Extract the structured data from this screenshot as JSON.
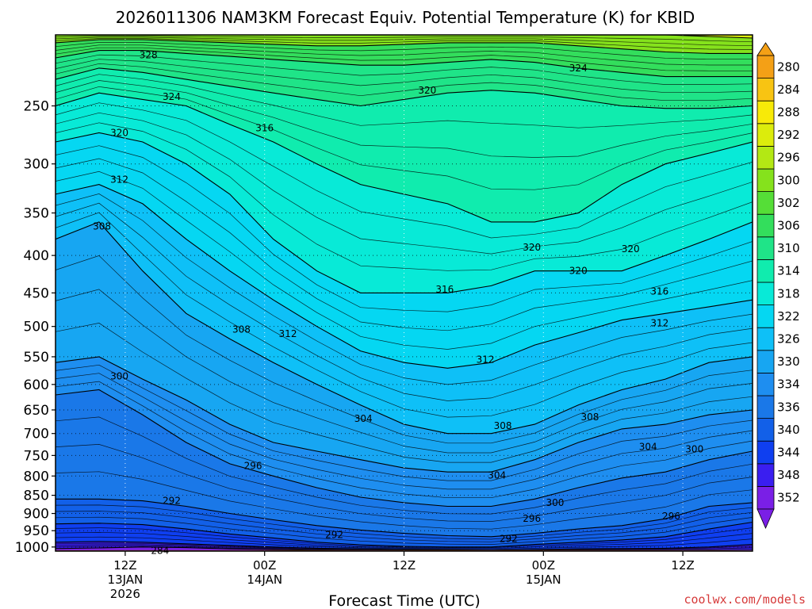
{
  "chart_data": {
    "type": "heatmap",
    "title": "2026011306 NAM3KM Forecast Equiv. Potential Temperature (K) for KBID",
    "xlabel": "Forecast Time (UTC)",
    "ylabel": "",
    "y_ticks": [
      250,
      300,
      350,
      400,
      450,
      500,
      550,
      600,
      650,
      700,
      750,
      800,
      850,
      900,
      950,
      1000
    ],
    "y_range": [
      1013,
      200
    ],
    "x_ticks": [
      {
        "hour": 12,
        "lines": [
          "12Z",
          "13JAN",
          "2026"
        ]
      },
      {
        "hour": 24,
        "lines": [
          "00Z",
          "14JAN"
        ]
      },
      {
        "hour": 36,
        "lines": [
          "12Z"
        ]
      },
      {
        "hour": 48,
        "lines": [
          "00Z",
          "15JAN"
        ]
      },
      {
        "hour": 60,
        "lines": [
          "12Z"
        ]
      }
    ],
    "x_range": [
      6,
      66
    ],
    "colorbar": {
      "levels": [
        280,
        284,
        288,
        292,
        296,
        300,
        302,
        306,
        310,
        314,
        318,
        322,
        326,
        330,
        334,
        336,
        340,
        344,
        348,
        352
      ],
      "colors": [
        "#7a1fe6",
        "#3a1ef0",
        "#0f3ff0",
        "#1260e8",
        "#1a78e8",
        "#1e8ef0",
        "#17a6f2",
        "#0ec0f7",
        "#05d7f2",
        "#08ead7",
        "#10ecae",
        "#1fe488",
        "#33de5c",
        "#55de37",
        "#85e21c",
        "#b3e814",
        "#dcec0c",
        "#f8ea08",
        "#f8c412",
        "#f4a016"
      ]
    },
    "layers": [
      {
        "theta": 284,
        "pressure": [
          1005,
          1003,
          1000,
          1002,
          1006,
          1008,
          1010,
          1012,
          1012,
          1012,
          1012,
          1012,
          1012,
          1012,
          1012,
          1012,
          1012
        ]
      },
      {
        "theta": 288,
        "pressure": [
          985,
          983,
          985,
          990,
          995,
          1000,
          1004,
          1006,
          1008,
          1009,
          1010,
          1008,
          1006,
          1005,
          1004,
          1000,
          992
        ]
      },
      {
        "theta": 292,
        "pressure": [
          930,
          928,
          932,
          945,
          960,
          972,
          985,
          993,
          998,
          1000,
          1000,
          992,
          985,
          978,
          968,
          945,
          925
        ]
      },
      {
        "theta": 296,
        "pressure": [
          860,
          860,
          865,
          880,
          900,
          918,
          935,
          948,
          958,
          965,
          968,
          958,
          945,
          935,
          915,
          880,
          870
        ]
      },
      {
        "theta": 300,
        "pressure": [
          620,
          610,
          660,
          720,
          770,
          800,
          830,
          855,
          870,
          880,
          880,
          860,
          830,
          805,
          790,
          760,
          740
        ]
      },
      {
        "theta": 304,
        "pressure": [
          560,
          550,
          590,
          630,
          680,
          720,
          740,
          760,
          780,
          790,
          790,
          760,
          720,
          690,
          680,
          660,
          650
        ]
      },
      {
        "theta": 308,
        "pressure": [
          380,
          360,
          420,
          480,
          520,
          560,
          600,
          640,
          680,
          700,
          700,
          680,
          640,
          610,
          590,
          560,
          550
        ]
      },
      {
        "theta": 312,
        "pressure": [
          330,
          320,
          340,
          380,
          420,
          460,
          500,
          540,
          560,
          570,
          560,
          530,
          510,
          490,
          480,
          470,
          460
        ]
      },
      {
        "theta": 316,
        "pressure": [
          280,
          272,
          280,
          300,
          330,
          380,
          420,
          450,
          450,
          450,
          440,
          420,
          420,
          420,
          400,
          380,
          360
        ]
      },
      {
        "theta": 320,
        "pressure": [
          250,
          240,
          245,
          250,
          265,
          280,
          300,
          320,
          330,
          340,
          360,
          360,
          350,
          320,
          300,
          290,
          280
        ]
      },
      {
        "theta": 324,
        "pressure": [
          230,
          222,
          225,
          230,
          235,
          240,
          245,
          250,
          245,
          240,
          238,
          240,
          245,
          250,
          252,
          252,
          250
        ]
      },
      {
        "theta": 328,
        "pressure": [
          215,
          210,
          210,
          212,
          214,
          216,
          218,
          220,
          220,
          218,
          216,
          218,
          222,
          225,
          228,
          228,
          228
        ]
      },
      {
        "theta": 334,
        "pressure": [
          205,
          203,
          203,
          204,
          205,
          206,
          207,
          207,
          206,
          205,
          205,
          205,
          207,
          209,
          211,
          212,
          212
        ]
      },
      {
        "theta": 340,
        "pressure": [
          200,
          200,
          200,
          200,
          200,
          200,
          200,
          200,
          200,
          200,
          200,
          200,
          200,
          200,
          200,
          201,
          202
        ]
      }
    ],
    "contour_labels": [
      {
        "text": "328",
        "hour": 14.0,
        "pressure": 213
      },
      {
        "text": "324",
        "hour": 51.0,
        "pressure": 222
      },
      {
        "text": "320",
        "hour": 38.0,
        "pressure": 238
      },
      {
        "text": "324",
        "hour": 16.0,
        "pressure": 243
      },
      {
        "text": "316",
        "hour": 24.0,
        "pressure": 268
      },
      {
        "text": "320",
        "hour": 11.5,
        "pressure": 272
      },
      {
        "text": "312",
        "hour": 11.5,
        "pressure": 315
      },
      {
        "text": "308",
        "hour": 10.0,
        "pressure": 365
      },
      {
        "text": "320",
        "hour": 47.0,
        "pressure": 390
      },
      {
        "text": "320",
        "hour": 55.5,
        "pressure": 392
      },
      {
        "text": "320",
        "hour": 51.0,
        "pressure": 420
      },
      {
        "text": "316",
        "hour": 39.5,
        "pressure": 445
      },
      {
        "text": "316",
        "hour": 58.0,
        "pressure": 448
      },
      {
        "text": "312",
        "hour": 58.0,
        "pressure": 495
      },
      {
        "text": "308",
        "hour": 22.0,
        "pressure": 505
      },
      {
        "text": "312",
        "hour": 26.0,
        "pressure": 512
      },
      {
        "text": "312",
        "hour": 43.0,
        "pressure": 555
      },
      {
        "text": "300",
        "hour": 11.5,
        "pressure": 585
      },
      {
        "text": "308",
        "hour": 52.0,
        "pressure": 665
      },
      {
        "text": "304",
        "hour": 32.5,
        "pressure": 668
      },
      {
        "text": "308",
        "hour": 44.5,
        "pressure": 683
      },
      {
        "text": "304",
        "hour": 57.0,
        "pressure": 730
      },
      {
        "text": "300",
        "hour": 61.0,
        "pressure": 735
      },
      {
        "text": "296",
        "hour": 23.0,
        "pressure": 775
      },
      {
        "text": "304",
        "hour": 44.0,
        "pressure": 798
      },
      {
        "text": "292",
        "hour": 16.0,
        "pressure": 865
      },
      {
        "text": "300",
        "hour": 49.0,
        "pressure": 870
      },
      {
        "text": "296",
        "hour": 47.0,
        "pressure": 915
      },
      {
        "text": "296",
        "hour": 59.0,
        "pressure": 908
      },
      {
        "text": "292",
        "hour": 30.0,
        "pressure": 962
      },
      {
        "text": "292",
        "hour": 45.0,
        "pressure": 975
      },
      {
        "text": "284",
        "hour": 15.0,
        "pressure": 1012
      }
    ],
    "legend": "right colorbar"
  },
  "credit": "coolwx.com/models",
  "colors": {
    "ground": "#a0522d",
    "grid": "#000000",
    "contour": "#000000"
  }
}
